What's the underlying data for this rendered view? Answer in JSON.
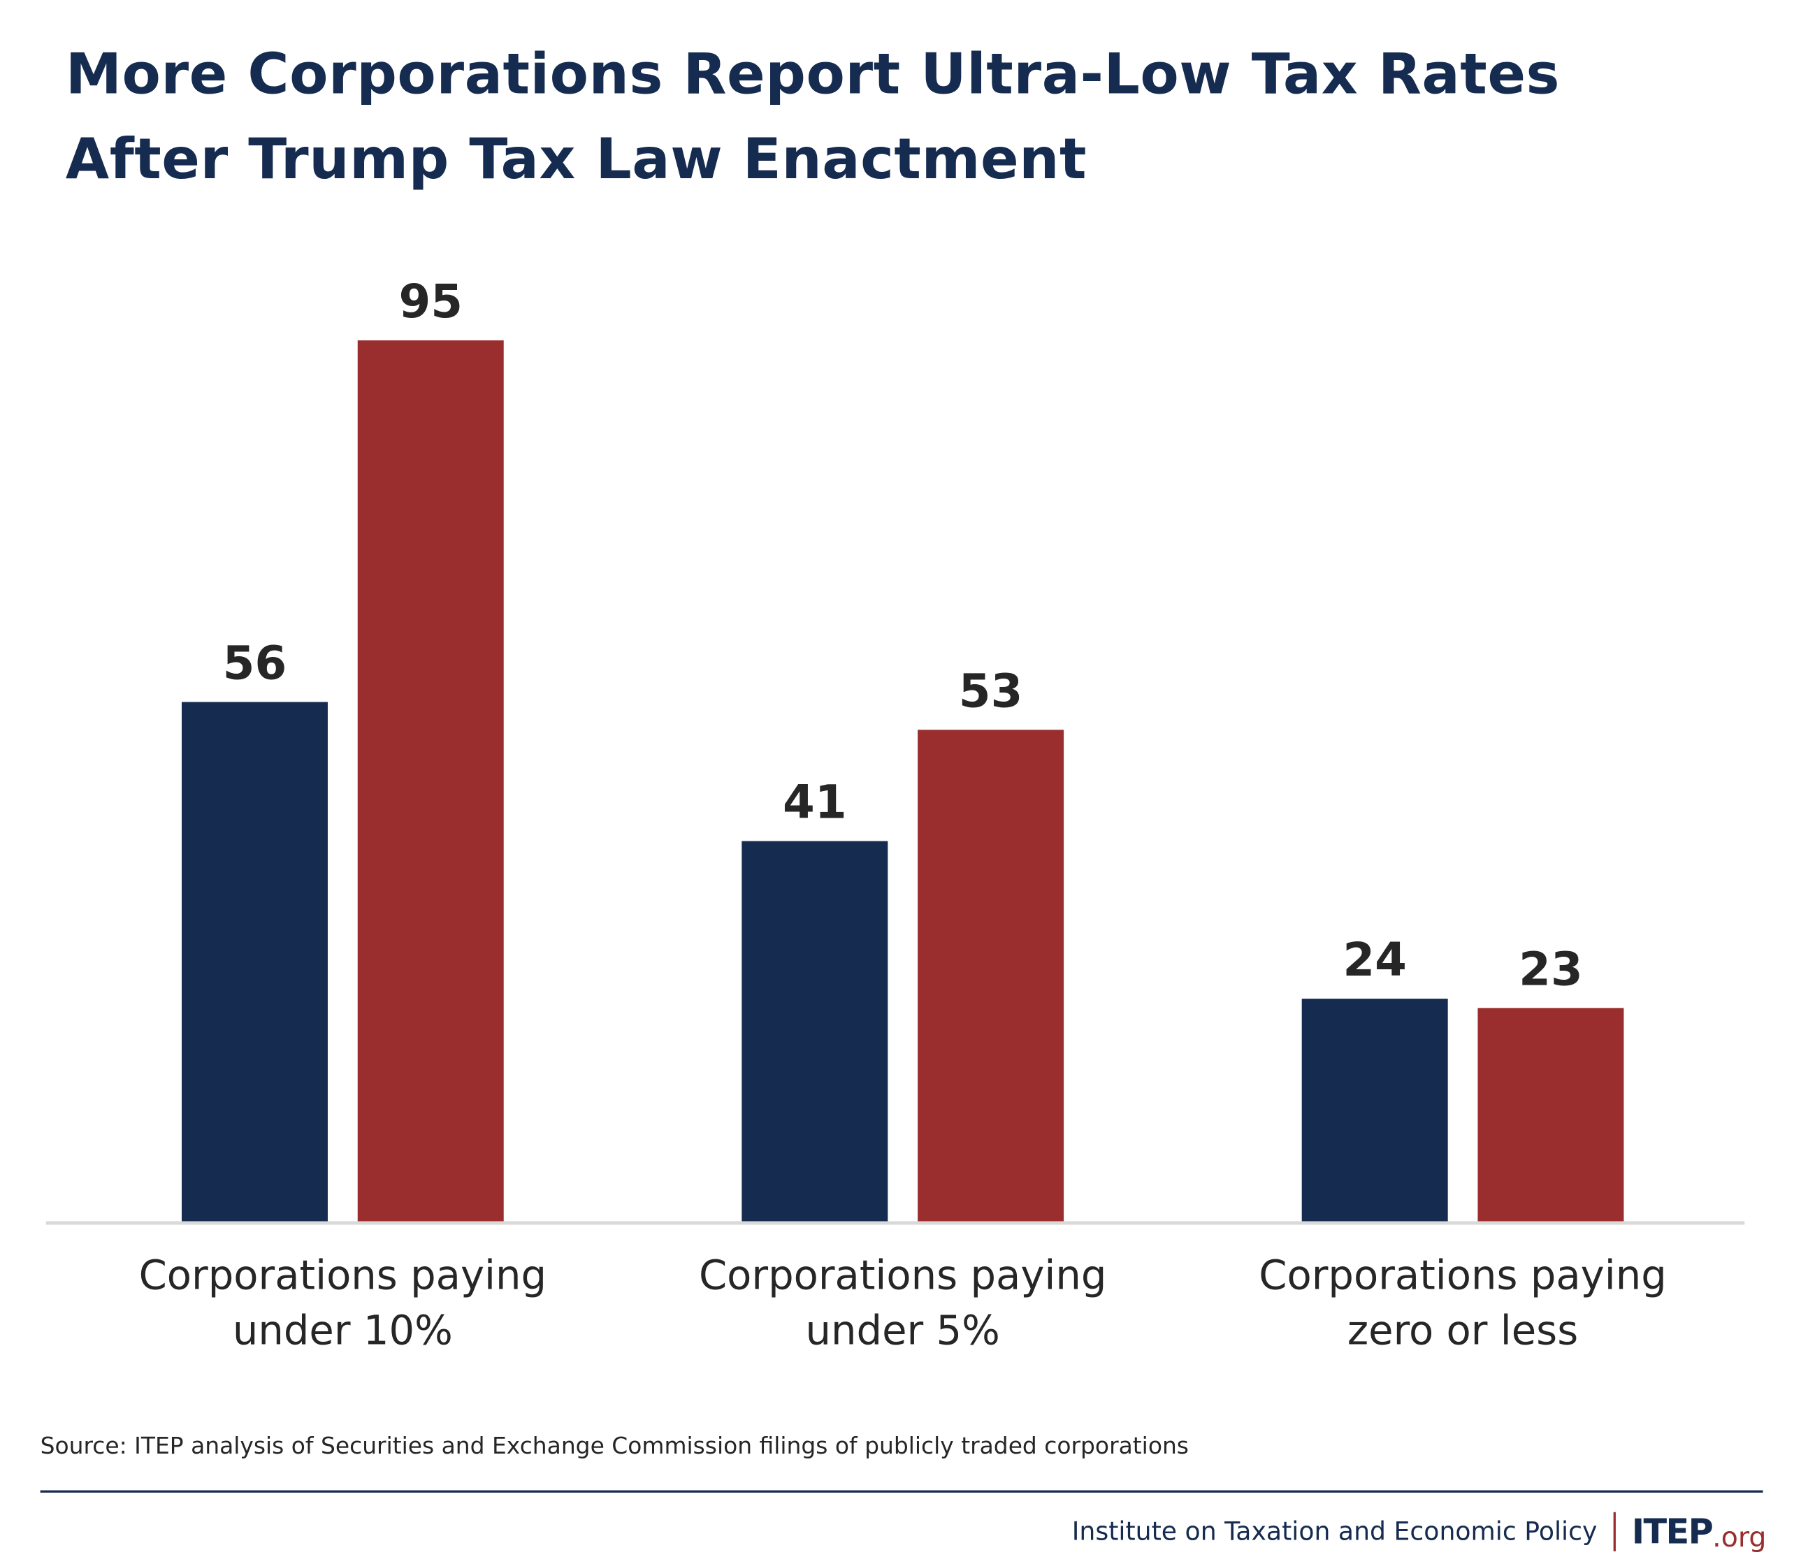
{
  "chart_data": {
    "type": "bar",
    "title": "More Corporations Report Ultra-Low Tax Rates After Trump Tax Law Enactment",
    "title_lines": [
      "More Corporations Report Ultra-Low Tax Rates",
      "After Trump Tax Law Enactment"
    ],
    "categories": [
      "Corporations paying under 10%",
      "Corporations paying under 5%",
      "Corporations paying zero or less"
    ],
    "category_lines": [
      [
        "Corporations paying",
        "under 10%"
      ],
      [
        "Corporations paying",
        "under 5%"
      ],
      [
        "Corporations paying",
        "zero or less"
      ]
    ],
    "series": [
      {
        "values": [
          56,
          41,
          24
        ],
        "color": "#152b4f"
      },
      {
        "values": [
          95,
          53,
          23
        ],
        "color": "#9a2e2e"
      }
    ],
    "ylim": [
      0,
      95
    ],
    "grid": false,
    "legend": "none",
    "xlabel": "",
    "ylabel": ""
  },
  "source": "Source: ITEP analysis of Securities and Exchange Commission filings of publicly traded corporations",
  "footer": {
    "org_name": "Institute on Taxation and Economic Policy",
    "logo_main": "ITEP",
    "logo_suffix": ".org"
  }
}
